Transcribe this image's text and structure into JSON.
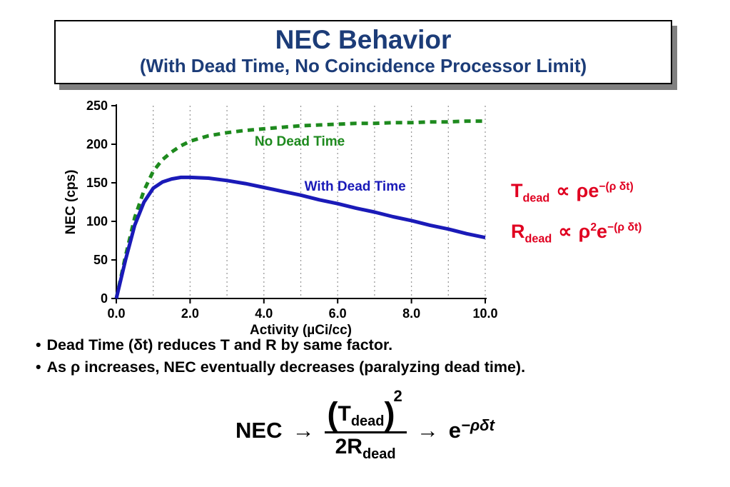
{
  "slide": {
    "title": "NEC Behavior",
    "subtitle": "(With Dead Time, No Coincidence Processor Limit)"
  },
  "chart_data": {
    "type": "line",
    "title": "",
    "xlabel": "Activity (µCi/cc)",
    "ylabel": "NEC (cps)",
    "xlim": [
      0,
      10
    ],
    "ylim": [
      0,
      250
    ],
    "x_tick_values": [
      0,
      2,
      4,
      6,
      8,
      10
    ],
    "x_tick_labels": [
      "0.0",
      "2.0",
      "4.0",
      "6.0",
      "8.0",
      "10.0"
    ],
    "y_tick_values": [
      0,
      50,
      100,
      150,
      200,
      250
    ],
    "y_tick_labels": [
      "0",
      "50",
      "100",
      "150",
      "200",
      "250"
    ],
    "grid_x_values": [
      1,
      2,
      3,
      4,
      5,
      6,
      7,
      8,
      9,
      10
    ],
    "grid_color": "#9a9a9a",
    "axis_color": "#000000",
    "series": [
      {
        "name": "No Dead Time",
        "color": "#1e8a1e",
        "dash": "9 7",
        "width": 5,
        "label_x": 3.75,
        "label_y": 198,
        "x": [
          0,
          0.25,
          0.5,
          0.75,
          1.0,
          1.25,
          1.5,
          1.75,
          2.0,
          2.5,
          3.0,
          3.5,
          4.0,
          4.5,
          5.0,
          5.5,
          6.0,
          6.5,
          7.0,
          7.5,
          8.0,
          8.5,
          9.0,
          9.5,
          10.0
        ],
        "y": [
          0,
          55,
          105,
          140,
          165,
          180,
          190,
          198,
          204,
          211,
          215,
          218,
          220,
          222,
          224,
          225,
          226,
          227,
          227,
          228,
          228,
          229,
          229,
          230,
          230
        ]
      },
      {
        "name": "With Dead Time",
        "color": "#1a1ab8",
        "dash": "",
        "width": 5,
        "label_x": 5.1,
        "label_y": 140,
        "x": [
          0,
          0.25,
          0.5,
          0.75,
          1.0,
          1.25,
          1.5,
          1.75,
          2.0,
          2.5,
          3.0,
          3.5,
          4.0,
          4.5,
          5.0,
          5.5,
          6.0,
          6.5,
          7.0,
          7.5,
          8.0,
          8.5,
          9.0,
          9.5,
          10.0
        ],
        "y": [
          0,
          50,
          95,
          125,
          143,
          151,
          155,
          157,
          157,
          156,
          153,
          149,
          144,
          139,
          134,
          128,
          123,
          117,
          112,
          106,
          101,
          95,
          90,
          84,
          79
        ]
      }
    ]
  },
  "formulas": {
    "line1": {
      "base": "T",
      "sub": "dead",
      "rel": "∝",
      "rho": "ρ",
      "rho_sup": "",
      "e": "e",
      "exp": "−(ρ δt)"
    },
    "line2": {
      "base": "R",
      "sub": "dead",
      "rel": "∝",
      "rho": "ρ",
      "rho_sup": "2",
      "e": "e",
      "exp": "−(ρ δt)"
    }
  },
  "bullets": [
    {
      "marker": "•",
      "text": "Dead Time (δt) reduces T and R by same factor."
    },
    {
      "marker": "•",
      "text": "As ρ increases, NEC eventually decreases (paralyzing dead time)."
    }
  ],
  "bottom_formula": {
    "lhs": "NEC",
    "arrow1": "→",
    "num_open": "(",
    "num_base": "T",
    "num_sub": "dead",
    "num_close": ")",
    "num_sup": "2",
    "den_base": "2R",
    "den_sub": "dead",
    "arrow2": "→",
    "exp_base": "e",
    "exp": "−ρδt"
  }
}
